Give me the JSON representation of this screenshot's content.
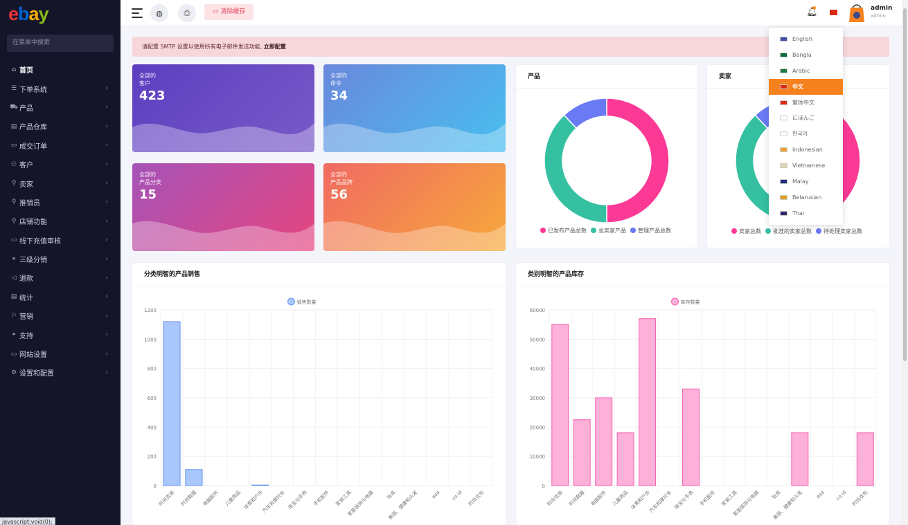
{
  "sidebar": {
    "search_placeholder": "在菜单中搜索",
    "items": [
      {
        "label": "首页",
        "icon": "⌂",
        "active": true
      },
      {
        "label": "下单系统",
        "icon": "☰"
      },
      {
        "label": "产品",
        "icon": "⛟"
      },
      {
        "label": "产品仓库",
        "icon": "▤"
      },
      {
        "label": "成交订单",
        "icon": "▭"
      },
      {
        "label": "客户",
        "icon": "⚇"
      },
      {
        "label": "卖家",
        "icon": "⚲"
      },
      {
        "label": "推销员",
        "icon": "⚲"
      },
      {
        "label": "店铺功能",
        "icon": "⚲"
      },
      {
        "label": "线下充值审核",
        "icon": "▭"
      },
      {
        "label": "三级分销",
        "icon": "⚭"
      },
      {
        "label": "退款",
        "icon": "◁"
      },
      {
        "label": "统计",
        "icon": "▤"
      },
      {
        "label": "营销",
        "icon": "⚐"
      },
      {
        "label": "支持",
        "icon": "⚭"
      },
      {
        "label": "网站设置",
        "icon": "▭"
      },
      {
        "label": "设置和配置",
        "icon": "⚙"
      }
    ],
    "status_tip": "javascript:void(0);"
  },
  "topbar": {
    "clear_cache": "清除缓存",
    "user_name": "admin",
    "user_role": "admin"
  },
  "alert": {
    "text": "请配置 SMTP 设置以使用所有电子邮件发送功能,",
    "link": "立即配置"
  },
  "stats": [
    {
      "line1": "全部的",
      "line2": "客户",
      "value": "423"
    },
    {
      "line1": "全部的",
      "line2": "命令",
      "value": "34"
    },
    {
      "line1": "全部的",
      "line2": "产品分类",
      "value": "15"
    },
    {
      "line1": "全部的",
      "line2": "产品品牌",
      "value": "56"
    }
  ],
  "colors": {
    "pink": "#fc3a96",
    "green": "#35c0a1",
    "blue": "#6a7af5",
    "orange": "#f5821f"
  },
  "panels": {
    "product_title": "产品",
    "seller_title": "卖家",
    "sales_title": "分类明智的产品销售",
    "stock_title": "类别明智的产品库存"
  },
  "languages": [
    {
      "label": "English",
      "flag": "#3c4fa8"
    },
    {
      "label": "Bangla",
      "flag": "#0a6a3c"
    },
    {
      "label": "Arabic",
      "flag": "#1c7a3a"
    },
    {
      "label": "中文",
      "flag": "#de2910",
      "active": true
    },
    {
      "label": "繁体中文",
      "flag": "#de2910"
    },
    {
      "label": "にほんご",
      "flag": "#ffffff"
    },
    {
      "label": "한국어",
      "flag": "#ffffff"
    },
    {
      "label": "Indonesian",
      "flag": "#e8a23a"
    },
    {
      "label": "Vietnamese",
      "flag": "#e0d9b0"
    },
    {
      "label": "Malay",
      "flag": "#1e2f7a"
    },
    {
      "label": "Belarusian",
      "flag": "#e0a020"
    },
    {
      "label": "Thai",
      "flag": "#2d2a6a"
    }
  ],
  "chart_data": [
    {
      "type": "pie",
      "title": "产品",
      "labels": [
        "已发布产品总数",
        "总卖家产品",
        "管理产品总数"
      ],
      "values": [
        50,
        38,
        12
      ],
      "colors": [
        "#fc3a96",
        "#35c0a1",
        "#6a7af5"
      ]
    },
    {
      "type": "pie",
      "title": "卖家",
      "labels": [
        "卖家总数",
        "批准的卖家总数",
        "待处理卖家总数"
      ],
      "values": [
        50,
        38,
        12
      ],
      "colors": [
        "#fc3a96",
        "#35c0a1",
        "#6a7af5"
      ]
    },
    {
      "type": "bar",
      "title": "分类明智的产品销售",
      "series": [
        {
          "name": "销售数量",
          "values": [
            1120,
            110,
            0,
            0,
            4,
            0,
            0,
            0,
            0,
            0,
            0,
            0,
            0,
            0,
            0
          ]
        }
      ],
      "categories": [
        "时尚衣装",
        "时尚鞋履",
        "电脑配件",
        "儿童用品",
        "体育和户外",
        "汽车和摩托车",
        "珠宝与手表",
        "手机配件",
        "家装工具",
        "家居装饰与电器",
        "玩具",
        "美容、健康和头发",
        "aaa",
        "co.id",
        "时尚衣包"
      ],
      "ylim": [
        0,
        1200
      ],
      "yticks": [
        "0",
        "200",
        "400",
        "600",
        "800",
        "1000",
        "1200"
      ],
      "color": "#a9c7fb",
      "border": "#6b98ee"
    },
    {
      "type": "bar",
      "title": "类别明智的产品库存",
      "series": [
        {
          "name": "库存数量",
          "values": [
            55000,
            22500,
            30000,
            18000,
            57000,
            0,
            33000,
            0,
            0,
            0,
            0,
            18000,
            0,
            0,
            18000
          ]
        }
      ],
      "categories": [
        "时尚衣装",
        "时尚鞋履",
        "电脑配件",
        "儿童用品",
        "体育和户外",
        "汽车和摩托车",
        "珠宝与手表",
        "手机配件",
        "家装工具",
        "家居装饰与电器",
        "玩具",
        "美容、健康和头发",
        "aaa",
        "co.id",
        "时尚衣包"
      ],
      "ylim": [
        0,
        60000
      ],
      "yticks": [
        "0",
        "10000",
        "20000",
        "30000",
        "40000",
        "50000",
        "60000"
      ],
      "color": "#fdb0d8",
      "border": "#f55fb0"
    }
  ]
}
